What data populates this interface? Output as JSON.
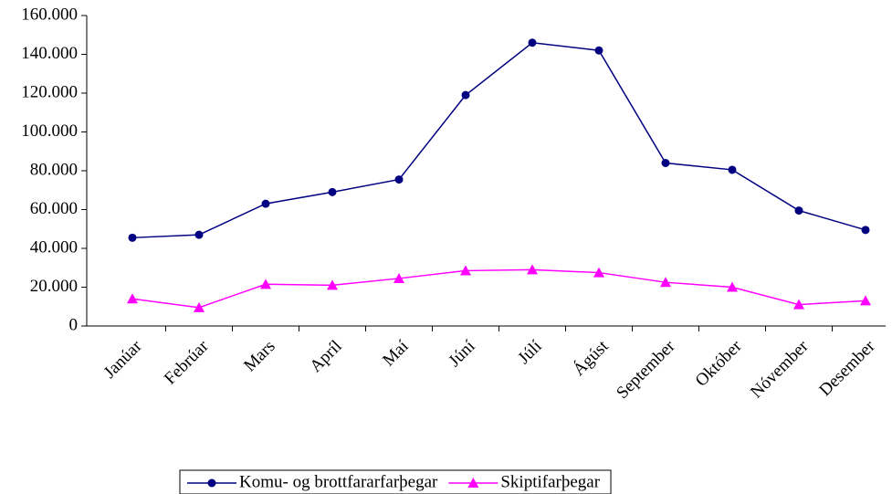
{
  "chart_data": {
    "type": "line",
    "categories": [
      "Janúar",
      "Febrúar",
      "Mars",
      "Apríl",
      "Maí",
      "Júní",
      "Júlí",
      "Ágúst",
      "September",
      "Október",
      "Nóvember",
      "Desember"
    ],
    "series": [
      {
        "name": "Komu- og brottfararfarþegar",
        "color": "#000080",
        "marker": "circle",
        "values": [
          45500,
          47000,
          63000,
          69000,
          75500,
          119000,
          146000,
          142000,
          84000,
          80500,
          59500,
          49500
        ]
      },
      {
        "name": "Skiptifarþegar",
        "color": "#ff00ff",
        "marker": "triangle",
        "values": [
          14000,
          9500,
          21500,
          21000,
          24500,
          28500,
          29000,
          27500,
          22500,
          20000,
          11000,
          13000
        ]
      }
    ],
    "ylim": [
      0,
      160000
    ],
    "yticks": [
      0,
      {
        "value": 20000,
        "label": "20.000"
      },
      {
        "value": 40000,
        "label": "40.000"
      },
      {
        "value": 60000,
        "label": "60.000"
      },
      {
        "value": 80000,
        "label": "80.000"
      },
      {
        "value": 100000,
        "label": "100.000"
      },
      {
        "value": 120000,
        "label": "120.000"
      },
      {
        "value": 140000,
        "label": "140.000"
      },
      {
        "value": 160000,
        "label": "160.000"
      }
    ],
    "grid": false,
    "legend": "bottom"
  }
}
